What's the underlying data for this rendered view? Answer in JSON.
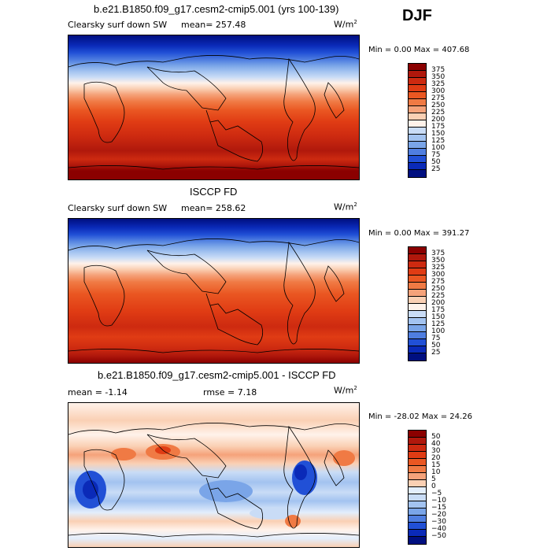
{
  "season": "DJF",
  "units": "W/m",
  "units_sup": "2",
  "panels": [
    {
      "title": "b.e21.B1850.f09_g17.cesm2-cmip5.001 (yrs 100-139)",
      "left_label": "Clearsky surf down SW",
      "stat1": "mean= 257.48",
      "stat2": "",
      "minmax": "Min =    0.00 Max = 407.68"
    },
    {
      "title": "ISCCP FD",
      "left_label": "Clearsky surf down SW",
      "stat1": "mean= 258.62",
      "stat2": "",
      "minmax": "Min =    0.00 Max = 391.27"
    },
    {
      "title": "b.e21.B1850.f09_g17.cesm2-cmip5.001 - ISCCP FD",
      "left_label": "",
      "stat1": "mean =  -1.14",
      "stat2": "rmse =   7.18",
      "minmax": "Min = -28.02 Max =  24.26"
    }
  ],
  "scale_abs": {
    "labels": [
      "375",
      "350",
      "325",
      "300",
      "275",
      "250",
      "225",
      "200",
      "175",
      "150",
      "125",
      "100",
      "75",
      "50",
      "25"
    ],
    "colors": [
      "#8b0000",
      "#b0180c",
      "#cd2a10",
      "#e03c14",
      "#ea5722",
      "#f07a44",
      "#f5a27a",
      "#fad0b4",
      "#fff2ea",
      "#c9dcf6",
      "#a3c3f0",
      "#7aa5e8",
      "#4f7ee0",
      "#2150d6",
      "#0a2ab8",
      "#000f80"
    ]
  },
  "scale_diff": {
    "labels": [
      "50",
      "40",
      "30",
      "20",
      "15",
      "10",
      "5",
      "0",
      "−5",
      "−10",
      "−15",
      "−20",
      "−30",
      "−40",
      "−50"
    ],
    "colors": [
      "#8b0000",
      "#b0180c",
      "#cd2a10",
      "#e03c14",
      "#ea5722",
      "#f07a44",
      "#f5a27a",
      "#fad0b4",
      "#e3eefc",
      "#c9dcf6",
      "#a3c3f0",
      "#7aa5e8",
      "#4f7ee0",
      "#2150d6",
      "#0a2ab8",
      "#000f80"
    ]
  }
}
